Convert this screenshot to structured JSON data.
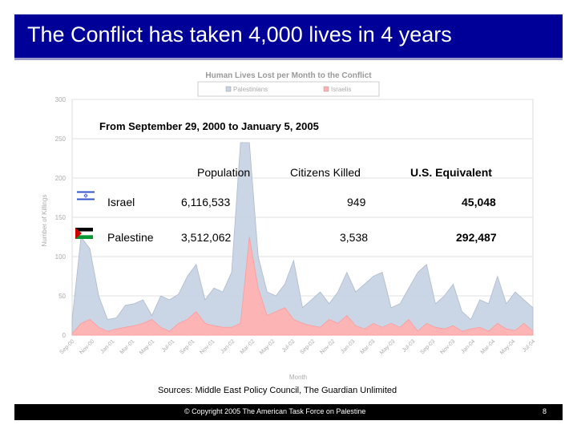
{
  "slide": {
    "title": "The Conflict has taken 4,000 lives in 4 years",
    "subtitle": "From September 29, 2000 to January 5, 2005",
    "sources": "Sources: Middle East Policy Council, The Guardian Unlimited",
    "copyright": "© Copyright 2005 The American Task Force on Palestine",
    "page_number": "8"
  },
  "table": {
    "headers": [
      "Population",
      "Citizens Killed",
      "U.S. Equivalent"
    ],
    "rows": [
      {
        "name": "Israel",
        "population": "6,116,533",
        "killed": "949",
        "us_equivalent": "45,048"
      },
      {
        "name": "Palestine",
        "population": "3,512,062",
        "killed": "3,538",
        "us_equivalent": "292,487"
      }
    ]
  },
  "chart_data": {
    "type": "area",
    "title": "Human Lives Lost per Month to the Conflict",
    "xlabel": "Month",
    "ylabel": "Number of Killings",
    "ylim": [
      0,
      300
    ],
    "yticks": [
      0,
      50,
      100,
      150,
      200,
      250,
      300
    ],
    "legend": "top",
    "grid": true,
    "x_tick_labels": [
      "Sep-00",
      "Nov-00",
      "Jan-01",
      "Mar-01",
      "May-01",
      "Jul-01",
      "Sep-01",
      "Nov-01",
      "Jan-02",
      "Mar-02",
      "May-02",
      "Jul-02",
      "Sep-02",
      "Nov-02",
      "Jan-03",
      "Mar-03",
      "May-03",
      "Jul-03",
      "Sep-03",
      "Nov-03",
      "Jan-04",
      "Mar-04",
      "May-04",
      "Jul-04"
    ],
    "series": [
      {
        "name": "Palestinians",
        "color": "#c8d4e4",
        "values": [
          20,
          125,
          110,
          50,
          20,
          22,
          38,
          40,
          45,
          25,
          50,
          45,
          52,
          75,
          90,
          45,
          60,
          55,
          80,
          245,
          245,
          100,
          55,
          50,
          65,
          95,
          35,
          45,
          55,
          40,
          55,
          80,
          55,
          65,
          75,
          80,
          35,
          40,
          60,
          80,
          90,
          40,
          50,
          65,
          30,
          20,
          45,
          40,
          75,
          40,
          55,
          45,
          35
        ]
      },
      {
        "name": "Israelis",
        "color": "#ffb3b3",
        "values": [
          2,
          15,
          20,
          10,
          5,
          8,
          10,
          12,
          15,
          20,
          10,
          5,
          15,
          20,
          30,
          15,
          12,
          10,
          10,
          15,
          125,
          60,
          25,
          30,
          35,
          20,
          15,
          12,
          10,
          20,
          15,
          25,
          12,
          8,
          15,
          10,
          15,
          10,
          20,
          5,
          15,
          10,
          8,
          12,
          5,
          8,
          10,
          5,
          15,
          8,
          6,
          15,
          5
        ]
      }
    ]
  }
}
